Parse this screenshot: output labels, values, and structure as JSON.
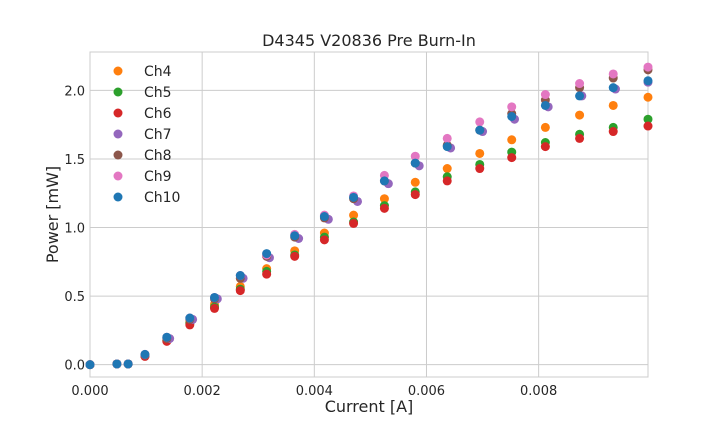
{
  "chart_data": {
    "type": "scatter",
    "title": "D4345 V20836 Pre Burn-In",
    "xlabel": "Current [A]",
    "ylabel": "Power [mW]",
    "xlim": [
      0,
      0.00995
    ],
    "ylim": [
      -0.09,
      2.28
    ],
    "xticks": [
      0,
      0.002,
      0.004,
      0.006,
      0.008
    ],
    "xtick_labels": [
      "0.000",
      "0.002",
      "0.004",
      "0.006",
      "0.008"
    ],
    "yticks": [
      0,
      0.5,
      1.0,
      1.5,
      2.0
    ],
    "ytick_labels": [
      "0.0",
      "0.5",
      "1.0",
      "1.5",
      "2.0"
    ],
    "grid": true,
    "legend_position": "top-left",
    "series": [
      {
        "name": "Ch4",
        "color": "#ff7f0e",
        "x": [
          0,
          0.00048,
          0.00068,
          0.00098,
          0.00137,
          0.00178,
          0.00222,
          0.00268,
          0.00315,
          0.00365,
          0.00418,
          0.0047,
          0.00525,
          0.0058,
          0.00637,
          0.00695,
          0.00752,
          0.00812,
          0.00873,
          0.00933,
          0.00995
        ],
        "y": [
          0.0,
          0.005,
          0.005,
          0.065,
          0.18,
          0.31,
          0.44,
          0.57,
          0.7,
          0.83,
          0.96,
          1.09,
          1.21,
          1.33,
          1.43,
          1.54,
          1.64,
          1.73,
          1.82,
          1.89,
          1.95
        ]
      },
      {
        "name": "Ch5",
        "color": "#2ca02c",
        "x": [
          0,
          0.00048,
          0.00068,
          0.00098,
          0.00137,
          0.00178,
          0.00222,
          0.00268,
          0.00315,
          0.00365,
          0.00418,
          0.0047,
          0.00525,
          0.0058,
          0.00637,
          0.00695,
          0.00752,
          0.00812,
          0.00873,
          0.00933,
          0.00995
        ],
        "y": [
          0.0,
          0.005,
          0.005,
          0.065,
          0.175,
          0.3,
          0.42,
          0.55,
          0.68,
          0.8,
          0.93,
          1.04,
          1.16,
          1.26,
          1.37,
          1.46,
          1.55,
          1.62,
          1.68,
          1.73,
          1.79
        ]
      },
      {
        "name": "Ch6",
        "color": "#d62728",
        "x": [
          0,
          0.00048,
          0.00068,
          0.00098,
          0.00137,
          0.00178,
          0.00222,
          0.00268,
          0.00315,
          0.00365,
          0.00418,
          0.0047,
          0.00525,
          0.0058,
          0.00637,
          0.00695,
          0.00752,
          0.00812,
          0.00873,
          0.00933,
          0.00995
        ],
        "y": [
          0.0,
          0.005,
          0.005,
          0.06,
          0.17,
          0.29,
          0.41,
          0.54,
          0.66,
          0.79,
          0.91,
          1.03,
          1.14,
          1.24,
          1.34,
          1.43,
          1.51,
          1.59,
          1.65,
          1.7,
          1.74
        ]
      },
      {
        "name": "Ch7",
        "color": "#9467bd",
        "x": [
          0,
          0.00048,
          0.00068,
          0.00098,
          0.00142,
          0.00183,
          0.00227,
          0.00273,
          0.0032,
          0.00372,
          0.00425,
          0.00477,
          0.00532,
          0.00587,
          0.00643,
          0.007,
          0.00757,
          0.00817,
          0.00877,
          0.00937,
          0.00995
        ],
        "y": [
          0.0,
          0.005,
          0.005,
          0.07,
          0.19,
          0.33,
          0.48,
          0.63,
          0.78,
          0.92,
          1.06,
          1.19,
          1.32,
          1.45,
          1.58,
          1.7,
          1.79,
          1.88,
          1.96,
          2.01,
          2.06
        ]
      },
      {
        "name": "Ch8",
        "color": "#8c564b",
        "x": [
          0,
          0.00048,
          0.00068,
          0.00098,
          0.00137,
          0.00178,
          0.00222,
          0.00268,
          0.00315,
          0.00365,
          0.00418,
          0.0047,
          0.00525,
          0.0058,
          0.00637,
          0.00695,
          0.00752,
          0.00812,
          0.00873,
          0.00933,
          0.00995
        ],
        "y": [
          0.0,
          0.005,
          0.005,
          0.07,
          0.19,
          0.33,
          0.48,
          0.63,
          0.79,
          0.93,
          1.07,
          1.21,
          1.34,
          1.47,
          1.6,
          1.71,
          1.83,
          1.93,
          2.02,
          2.09,
          2.15
        ]
      },
      {
        "name": "Ch9",
        "color": "#e377c2",
        "x": [
          0,
          0.00048,
          0.00068,
          0.00098,
          0.00137,
          0.00178,
          0.00222,
          0.00268,
          0.00315,
          0.00365,
          0.00418,
          0.0047,
          0.00525,
          0.0058,
          0.00637,
          0.00695,
          0.00752,
          0.00812,
          0.00873,
          0.00933,
          0.00995
        ],
        "y": [
          0.0,
          0.005,
          0.005,
          0.075,
          0.2,
          0.34,
          0.49,
          0.65,
          0.8,
          0.95,
          1.09,
          1.23,
          1.38,
          1.52,
          1.65,
          1.77,
          1.88,
          1.97,
          2.05,
          2.12,
          2.17
        ]
      },
      {
        "name": "Ch10",
        "color": "#1f77b4",
        "x": [
          0,
          0.00048,
          0.00068,
          0.00098,
          0.00137,
          0.00178,
          0.00222,
          0.00268,
          0.00315,
          0.00365,
          0.00418,
          0.0047,
          0.00525,
          0.0058,
          0.00637,
          0.00695,
          0.00752,
          0.00812,
          0.00873,
          0.00933,
          0.00995
        ],
        "y": [
          0.0,
          0.005,
          0.005,
          0.075,
          0.2,
          0.34,
          0.49,
          0.65,
          0.81,
          0.94,
          1.08,
          1.22,
          1.34,
          1.47,
          1.59,
          1.71,
          1.81,
          1.89,
          1.96,
          2.02,
          2.07
        ]
      }
    ]
  }
}
